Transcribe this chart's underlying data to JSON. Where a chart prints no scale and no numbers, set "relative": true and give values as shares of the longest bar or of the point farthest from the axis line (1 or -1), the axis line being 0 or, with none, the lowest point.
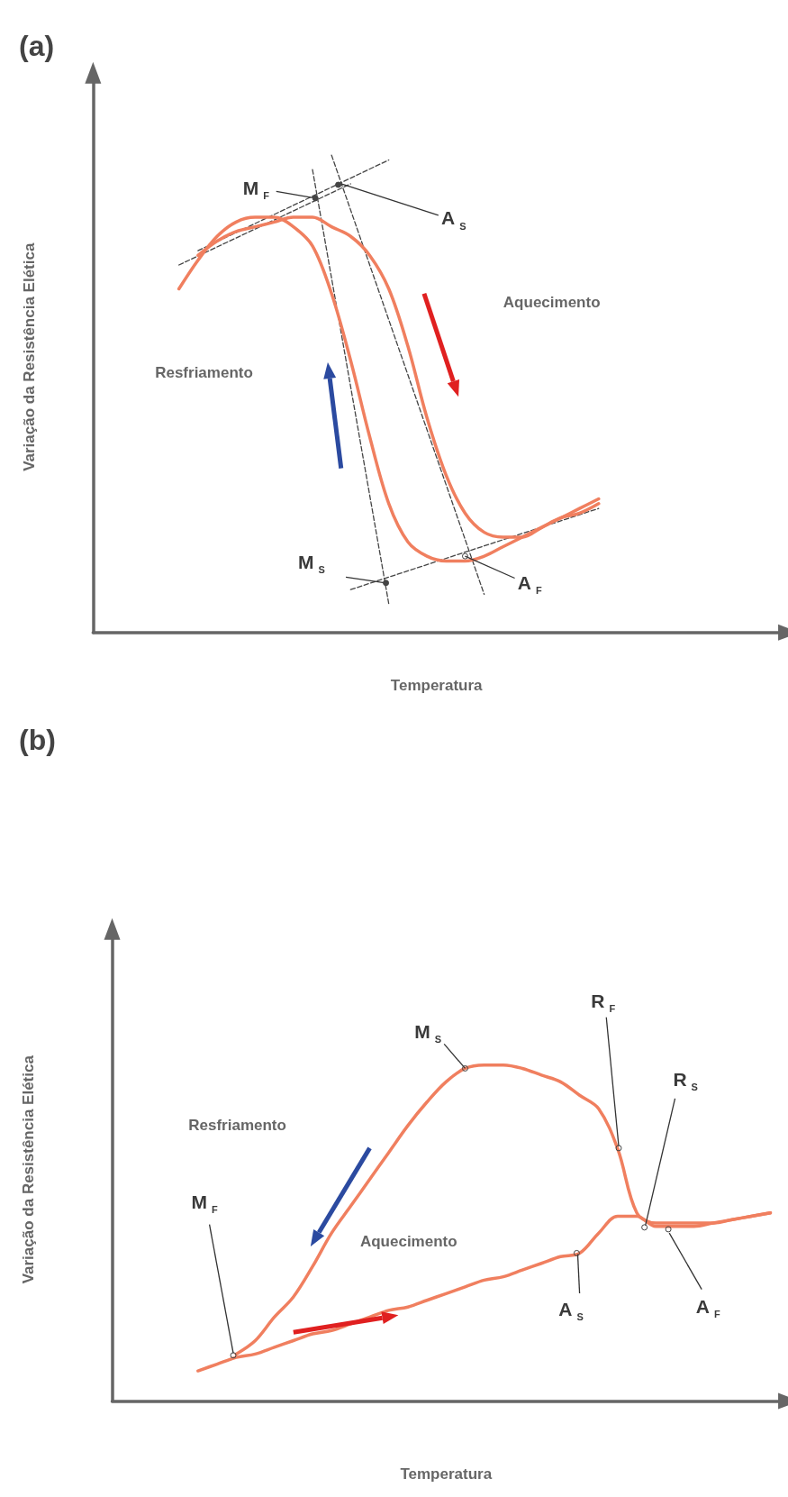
{
  "chart_data": [
    {
      "type": "line",
      "title": "(a)",
      "xlabel": "Temperatura",
      "ylabel": "Variação da Resistência Elética",
      "relative": true,
      "marker": "none",
      "line_style": "solid",
      "categories": [
        null,
        null,
        null,
        null,
        null,
        null,
        null,
        null,
        null,
        null,
        null,
        null,
        null,
        null,
        null,
        null,
        null,
        null,
        null,
        null,
        null,
        null,
        null,
        null,
        null,
        null,
        null,
        null,
        null,
        null,
        null,
        null,
        null,
        null,
        null,
        null
      ],
      "series": [
        {
          "color": "#f07f5f",
          "values": [
            null,
            null,
            null,
            null,
            0.72,
            0.78,
            0.83,
            0.86,
            0.87,
            0.87,
            0.85,
            0.81,
            0.71,
            0.57,
            0.41,
            0.27,
            0.19,
            0.16,
            0.15,
            0.15,
            0.16,
            0.18,
            0.2,
            0.22,
            0.24,
            0.25,
            0.27,
            null,
            null,
            null,
            null,
            null,
            null,
            null,
            null,
            null
          ]
        },
        {
          "color": "#f07f5f",
          "values": [
            null,
            null,
            null,
            null,
            null,
            0.79,
            0.82,
            0.84,
            0.85,
            0.86,
            0.87,
            0.87,
            0.85,
            0.83,
            0.79,
            0.72,
            0.6,
            0.45,
            0.33,
            0.25,
            0.21,
            0.2,
            0.2,
            0.22,
            0.24,
            0.26,
            0.28,
            null,
            null,
            null,
            null,
            null,
            null,
            null,
            null,
            null
          ]
        },
        {
          "color": "#444444",
          "line_style": "dashed",
          "values": [
            null,
            null,
            null,
            null,
            0.77,
            null,
            null,
            null,
            null,
            null,
            null,
            null,
            null,
            0.94,
            null,
            null,
            null,
            null,
            null,
            null,
            null,
            null,
            null,
            null,
            null,
            null,
            null,
            null,
            null,
            null,
            null,
            null,
            null,
            null,
            null,
            null
          ]
        },
        {
          "color": "#444444",
          "line_style": "dashed",
          "values": [
            null,
            null,
            null,
            null,
            null,
            0.8,
            null,
            null,
            null,
            null,
            null,
            null,
            null,
            null,
            null,
            0.99,
            null,
            null,
            null,
            null,
            null,
            null,
            null,
            null,
            null,
            null,
            null,
            null,
            null,
            null,
            null,
            null,
            null,
            null,
            null,
            null
          ]
        },
        {
          "color": "#444444",
          "line_style": "dashed",
          "values": [
            null,
            null,
            null,
            null,
            null,
            null,
            null,
            null,
            null,
            null,
            null,
            0.97,
            null,
            null,
            null,
            0.06,
            null,
            null,
            null,
            null,
            null,
            null,
            null,
            null,
            null,
            null,
            null,
            null,
            null,
            null,
            null,
            null,
            null,
            null,
            null,
            null
          ]
        },
        {
          "color": "#444444",
          "line_style": "dashed",
          "values": [
            null,
            null,
            null,
            null,
            null,
            null,
            null,
            null,
            null,
            null,
            null,
            null,
            1.0,
            null,
            null,
            null,
            null,
            null,
            null,
            null,
            0.08,
            null,
            null,
            null,
            null,
            null,
            null,
            null,
            null,
            null,
            null,
            null,
            null,
            null,
            null,
            null
          ]
        },
        {
          "color": "#444444",
          "line_style": "dashed",
          "values": [
            null,
            null,
            null,
            null,
            null,
            null,
            null,
            null,
            null,
            null,
            null,
            null,
            null,
            0.09,
            null,
            null,
            null,
            null,
            null,
            null,
            null,
            null,
            null,
            null,
            null,
            null,
            0.26,
            null,
            null,
            null,
            null,
            null,
            null,
            null,
            null,
            null
          ]
        }
      ],
      "annotations": [
        "M$_{F}$",
        "A$_{S}$",
        "M$_{S}$",
        "A$_{F}$",
        "Resfriamento",
        "Aquecimento"
      ]
    },
    {
      "type": "line",
      "title": "(b)",
      "xlabel": "Temperatura",
      "ylabel": "Variação da Resistência Elética",
      "relative": true,
      "marker": "none",
      "line_style": "solid",
      "categories": [
        null,
        null,
        null,
        null,
        null,
        null,
        null,
        null,
        null,
        null,
        null,
        null,
        null,
        null,
        null,
        null,
        null,
        null,
        null,
        null,
        null,
        null,
        null,
        null,
        null,
        null,
        null,
        null,
        null,
        null,
        null,
        null,
        null,
        null,
        null
      ],
      "series": [
        {
          "color": "#f07f5f",
          "values": [
            null,
            null,
            null,
            null,
            null,
            null,
            0.14,
            0.18,
            0.25,
            0.31,
            0.4,
            0.5,
            0.58,
            0.66,
            0.74,
            0.82,
            0.89,
            0.95,
            0.99,
            1.0,
            1.0,
            0.99,
            0.97,
            0.95,
            0.91,
            0.87,
            0.75,
            0.56,
            0.53,
            0.53,
            0.53,
            0.53,
            0.54,
            0.55,
            0.56
          ]
        },
        {
          "color": "#f07f5f",
          "values": [
            null,
            null,
            null,
            null,
            0.09,
            0.11,
            0.13,
            0.14,
            0.16,
            0.18,
            0.2,
            0.21,
            0.23,
            0.25,
            0.27,
            0.28,
            0.3,
            0.32,
            0.34,
            0.36,
            0.37,
            0.39,
            0.41,
            0.43,
            0.44,
            0.5,
            0.55,
            0.55,
            0.52,
            0.52,
            0.52,
            0.53,
            0.54,
            0.55,
            0.56
          ]
        }
      ],
      "annotations": [
        "M$_{S}$",
        "R$_{F}$",
        "R$_{S}$",
        "M$_{F}$",
        "A$_{S}$",
        "A$_{F}$",
        "Resfriamento",
        "Aquecimento"
      ]
    }
  ]
}
